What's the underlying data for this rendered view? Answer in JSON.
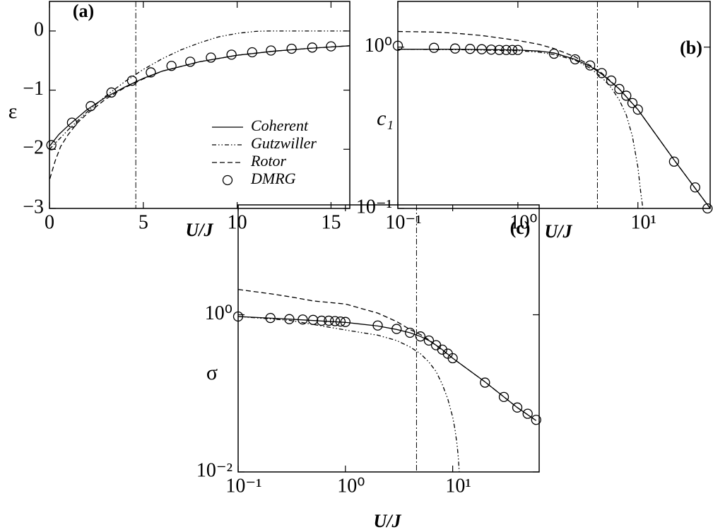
{
  "chart_data": [
    {
      "type": "line",
      "panel_label": "(a)",
      "xlabel": "U/J",
      "ylabel": "ε",
      "xlim": [
        0,
        16
      ],
      "ylim": [
        -3,
        0.5
      ],
      "xscale": "linear",
      "yscale": "linear",
      "xticks": [
        0,
        5,
        10,
        15
      ],
      "yticks": [
        {
          "value": -3,
          "label": "−3"
        },
        {
          "value": -2,
          "label": "−2"
        },
        {
          "value": -1,
          "label": "−1"
        },
        0
      ],
      "vline": 4.6,
      "series": [
        {
          "name": "Coherent",
          "style": "solid",
          "color": "#000000",
          "x": [
            0,
            0.5,
            1,
            2,
            3,
            4,
            5,
            6,
            8,
            10,
            12,
            14,
            16
          ],
          "values": [
            -1.95,
            -1.75,
            -1.6,
            -1.33,
            -1.12,
            -0.95,
            -0.8,
            -0.68,
            -0.52,
            -0.41,
            -0.34,
            -0.29,
            -0.25
          ]
        },
        {
          "name": "Gutzwiller",
          "style": "dashdotdot",
          "color": "#000000",
          "x": [
            0,
            1,
            2,
            3,
            4,
            5,
            6,
            7,
            8,
            9,
            10,
            11,
            11.66,
            16
          ],
          "values": [
            -2,
            -1.67,
            -1.37,
            -1.1,
            -0.86,
            -0.65,
            -0.47,
            -0.32,
            -0.2,
            -0.1,
            -0.04,
            -0.006,
            0,
            0
          ]
        },
        {
          "name": "Rotor",
          "style": "dashed",
          "color": "#000000",
          "x": [
            0.02,
            0.3,
            0.6,
            1,
            1.5,
            2,
            3,
            4,
            5,
            6,
            8,
            10,
            12,
            14,
            16
          ],
          "values": [
            -2.5,
            -2.2,
            -1.95,
            -1.75,
            -1.55,
            -1.4,
            -1.15,
            -0.96,
            -0.81,
            -0.68,
            -0.52,
            -0.41,
            -0.34,
            -0.29,
            -0.25
          ]
        },
        {
          "name": "DMRG",
          "style": "markers",
          "color": "#000000",
          "x": [
            0.1,
            1.2,
            2.2,
            3.3,
            4.4,
            5.4,
            6.5,
            7.5,
            8.6,
            9.7,
            10.8,
            11.8,
            12.9,
            14,
            15
          ],
          "values": [
            -1.93,
            -1.55,
            -1.27,
            -1.04,
            -0.84,
            -0.7,
            -0.59,
            -0.52,
            -0.45,
            -0.4,
            -0.36,
            -0.33,
            -0.3,
            -0.28,
            -0.26
          ]
        }
      ]
    },
    {
      "type": "line",
      "panel_label": "(b)",
      "xlabel": "U/J",
      "ylabel": "c₁",
      "xlim": [
        0.1,
        40
      ],
      "ylim": [
        0.1,
        1.92
      ],
      "xscale": "log",
      "yscale": "log",
      "xticks": [
        {
          "value": 0.1,
          "label": "10⁻¹"
        },
        {
          "value": 1,
          "label": "10⁰"
        },
        {
          "value": 10,
          "label": "10¹"
        }
      ],
      "yticks": [
        {
          "value": 0.1,
          "label": "10⁻¹"
        },
        {
          "value": 1,
          "label": "10⁰"
        }
      ],
      "vline": 4.6,
      "series": [
        {
          "style": "solid",
          "color": "#000000",
          "x": [
            0.1,
            0.3,
            1,
            1.5,
            2,
            3,
            4,
            5,
            7,
            10,
            20,
            40
          ],
          "values": [
            0.97,
            0.97,
            0.96,
            0.945,
            0.92,
            0.84,
            0.76,
            0.68,
            0.55,
            0.41,
            0.2,
            0.1
          ]
        },
        {
          "style": "dashdotdot",
          "color": "#000000",
          "x": [
            0.1,
            0.3,
            1,
            1.5,
            2,
            3,
            4,
            5,
            6,
            7,
            8,
            9,
            10,
            10.5,
            11
          ],
          "values": [
            0.97,
            0.965,
            0.95,
            0.93,
            0.9,
            0.83,
            0.74,
            0.65,
            0.56,
            0.47,
            0.38,
            0.28,
            0.18,
            0.13,
            0.1
          ]
        },
        {
          "style": "dashed",
          "color": "#000000",
          "x": [
            0.1,
            0.2,
            0.3,
            0.5,
            1,
            1.5,
            2,
            3,
            4,
            5,
            7,
            10,
            20,
            40
          ],
          "values": [
            1.25,
            1.24,
            1.22,
            1.18,
            1.1,
            1.04,
            0.98,
            0.87,
            0.77,
            0.69,
            0.55,
            0.41,
            0.2,
            0.1
          ]
        },
        {
          "style": "markers",
          "color": "#000000",
          "x": [
            0.1,
            0.2,
            0.3,
            0.4,
            0.5,
            0.6,
            0.7,
            0.8,
            0.9,
            1,
            2,
            3,
            4,
            5,
            6,
            7,
            8,
            9,
            10,
            20,
            30,
            38
          ],
          "values": [
            1.02,
            0.99,
            0.98,
            0.975,
            0.97,
            0.965,
            0.96,
            0.96,
            0.96,
            0.96,
            0.91,
            0.84,
            0.77,
            0.69,
            0.62,
            0.55,
            0.5,
            0.45,
            0.41,
            0.195,
            0.135,
            0.1
          ]
        }
      ]
    },
    {
      "type": "line",
      "panel_label": "(c)",
      "xlabel": "U/J",
      "ylabel": "σ",
      "xlim": [
        0.1,
        64
      ],
      "ylim": [
        0.01,
        25
      ],
      "xscale": "log",
      "yscale": "log",
      "xticks": [
        {
          "value": 0.1,
          "label": "10⁻¹"
        },
        {
          "value": 1,
          "label": "10⁰"
        },
        {
          "value": 10,
          "label": "10¹"
        }
      ],
      "yticks": [
        {
          "value": 0.01,
          "label": "10⁻²"
        },
        {
          "value": 1,
          "label": "10⁰"
        }
      ],
      "vline": 4.6,
      "series": [
        {
          "style": "solid",
          "color": "#000000",
          "x": [
            0.1,
            0.3,
            1,
            2,
            3,
            4,
            5,
            6,
            7,
            8,
            10,
            20,
            40,
            60
          ],
          "values": [
            0.95,
            0.88,
            0.8,
            0.72,
            0.65,
            0.59,
            0.53,
            0.47,
            0.41,
            0.36,
            0.28,
            0.14,
            0.066,
            0.045
          ]
        },
        {
          "style": "dashdotdot",
          "color": "#000000",
          "x": [
            0.1,
            0.3,
            1,
            2,
            3,
            4,
            5,
            6,
            7,
            8,
            9,
            10,
            10.5,
            11,
            11.3,
            11.5
          ],
          "values": [
            0.95,
            0.85,
            0.64,
            0.55,
            0.47,
            0.39,
            0.32,
            0.25,
            0.19,
            0.13,
            0.085,
            0.05,
            0.035,
            0.022,
            0.015,
            0.01
          ]
        },
        {
          "style": "dashed",
          "color": "#000000",
          "x": [
            0.1,
            0.2,
            0.3,
            0.5,
            1,
            2,
            3,
            4,
            5,
            6,
            10,
            20,
            40,
            60
          ],
          "values": [
            2.1,
            1.85,
            1.7,
            1.5,
            1.37,
            1.05,
            0.82,
            0.65,
            0.56,
            0.48,
            0.28,
            0.14,
            0.066,
            0.045
          ]
        },
        {
          "style": "markers",
          "color": "#000000",
          "x": [
            0.1,
            0.2,
            0.3,
            0.4,
            0.5,
            0.6,
            0.7,
            0.8,
            0.9,
            1,
            2,
            3,
            4,
            5,
            6,
            7,
            8,
            9,
            10,
            20,
            30,
            40,
            50,
            60
          ],
          "values": [
            0.95,
            0.91,
            0.88,
            0.87,
            0.86,
            0.84,
            0.84,
            0.83,
            0.82,
            0.81,
            0.73,
            0.66,
            0.59,
            0.53,
            0.47,
            0.41,
            0.36,
            0.32,
            0.28,
            0.137,
            0.09,
            0.066,
            0.055,
            0.046
          ]
        }
      ]
    }
  ]
}
